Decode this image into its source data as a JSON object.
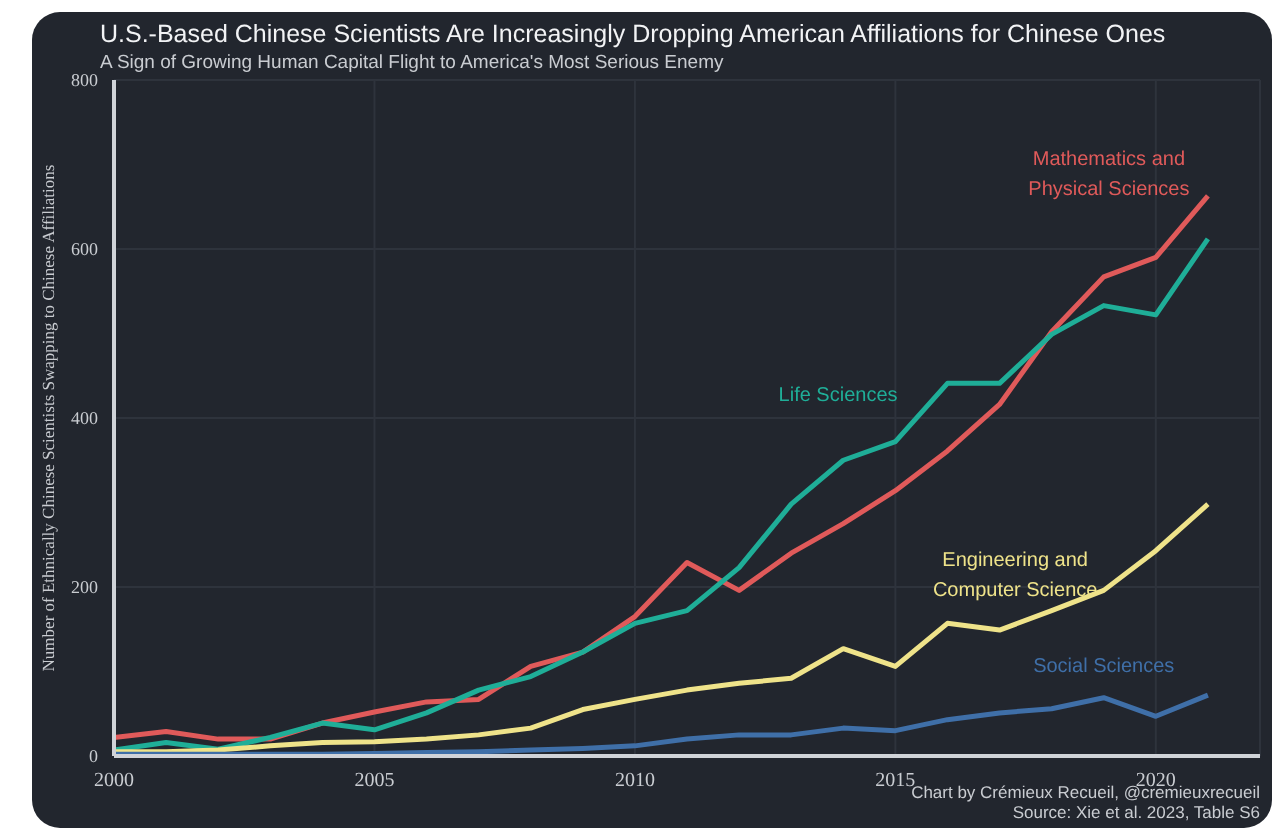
{
  "chart_data": {
    "type": "line",
    "title": "U.S.-Based Chinese Scientists Are Increasingly Dropping American Affiliations for Chinese Ones",
    "subtitle": "A Sign of Growing Human Capital Flight to America's Most Serious Enemy",
    "ylabel": "Number of Ethnically Chinese Scientists Swapping to Chinese Affiliations",
    "x": [
      2000,
      2001,
      2002,
      2003,
      2004,
      2005,
      2006,
      2007,
      2008,
      2009,
      2010,
      2011,
      2012,
      2013,
      2014,
      2015,
      2016,
      2017,
      2018,
      2019,
      2020,
      2021
    ],
    "series": [
      {
        "name": "Mathematics and Physical Sciences",
        "color": "#e05a5a",
        "values": [
          22,
          29,
          20,
          20,
          39,
          52,
          64,
          67,
          106,
          123,
          165,
          229,
          196,
          240,
          275,
          314,
          361,
          416,
          502,
          567,
          590,
          663
        ]
      },
      {
        "name": "Life Sciences",
        "color": "#1fae98",
        "values": [
          7,
          16,
          8,
          22,
          39,
          31,
          51,
          78,
          94,
          123,
          157,
          172,
          223,
          298,
          350,
          372,
          441,
          441,
          499,
          533,
          522,
          612
        ]
      },
      {
        "name": "Engineering and Computer Science",
        "color": "#efe38a",
        "values": [
          5,
          5,
          7,
          12,
          16,
          17,
          20,
          25,
          33,
          55,
          67,
          78,
          86,
          92,
          127,
          106,
          157,
          149,
          172,
          196,
          243,
          298
        ]
      },
      {
        "name": "Social Sciences",
        "color": "#3f6fa8",
        "values": [
          2,
          2,
          2,
          2,
          2,
          3,
          4,
          5,
          7,
          9,
          12,
          20,
          25,
          25,
          33,
          30,
          43,
          51,
          56,
          69,
          47,
          72
        ]
      }
    ],
    "xlim": [
      2000,
      2022
    ],
    "xticks": [
      2000,
      2005,
      2010,
      2015,
      2020
    ],
    "ylim": [
      0,
      800
    ],
    "yticks": [
      0,
      200,
      400,
      600,
      800
    ],
    "grid": true,
    "legend": false,
    "marker": "none",
    "line_style": "solid",
    "annotations": [
      "Chart by Crémieux Recueil, @cremieuxrecueil",
      "Source: Xie et al. 2023, Table S6"
    ]
  }
}
